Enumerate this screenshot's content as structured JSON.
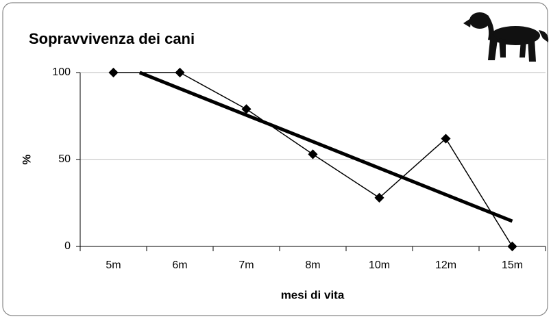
{
  "chart_data": {
    "type": "line",
    "title": "Sopravvivenza dei cani",
    "x_label": "mesi di vita",
    "y_label": "%",
    "categories": [
      "5m",
      "6m",
      "7m",
      "8m",
      "10m",
      "12m",
      "15m"
    ],
    "series": [
      {
        "color": "#000000",
        "values": [
          100,
          100,
          79,
          53,
          28,
          62,
          0
        ]
      }
    ],
    "trendline": true,
    "ylim": [
      0,
      100
    ],
    "yticks": [
      0,
      50,
      100
    ],
    "grid": true
  }
}
